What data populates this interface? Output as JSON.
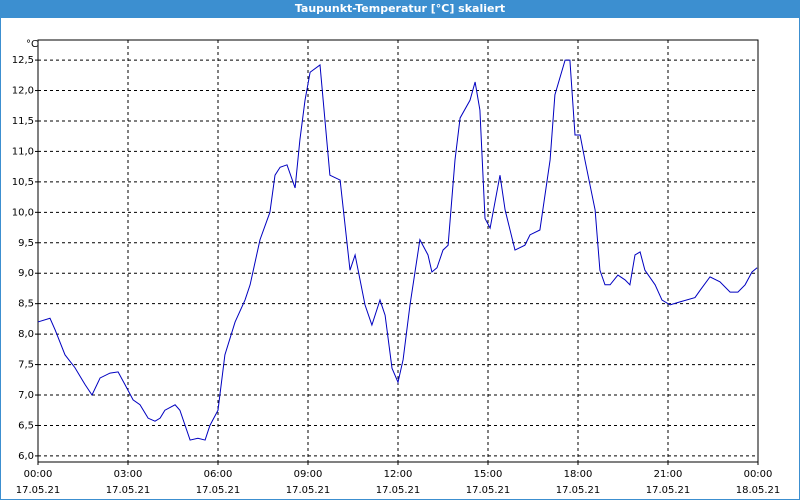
{
  "chart_data": {
    "type": "line",
    "title": "Taupunkt-Temperatur [°C] skaliert",
    "y_label": "°C",
    "x": [
      0,
      0.4,
      0.57,
      0.9,
      1.23,
      1.57,
      1.8,
      2.07,
      2.4,
      2.67,
      2.9,
      3.17,
      3.4,
      3.67,
      3.9,
      4.07,
      4.23,
      4.57,
      4.73,
      5.07,
      5.33,
      5.57,
      5.73,
      6.0,
      6.23,
      6.57,
      6.9,
      7.07,
      7.4,
      7.73,
      7.9,
      8.07,
      8.3,
      8.57,
      8.73,
      8.9,
      9.07,
      9.4,
      9.73,
      10.07,
      10.4,
      10.57,
      10.9,
      11.13,
      11.4,
      11.57,
      11.8,
      12.0,
      12.17,
      12.4,
      12.73,
      13.0,
      13.13,
      13.3,
      13.5,
      13.67,
      13.9,
      14.07,
      14.4,
      14.57,
      14.73,
      14.9,
      15.07,
      15.4,
      15.57,
      15.9,
      16.23,
      16.4,
      16.73,
      17.07,
      17.23,
      17.57,
      17.73,
      17.9,
      18.07,
      18.23,
      18.57,
      18.73,
      18.9,
      19.07,
      19.33,
      19.57,
      19.73,
      19.9,
      20.07,
      20.23,
      20.57,
      20.8,
      21.07,
      21.4,
      21.9,
      22.07,
      22.4,
      22.73,
      23.07,
      23.33,
      23.57,
      23.8,
      23.97
    ],
    "series": [
      {
        "name": "Taupunkt",
        "color": "#0000c0",
        "values": [
          8.2,
          8.26,
          8.07,
          7.66,
          7.45,
          7.17,
          7.0,
          7.28,
          7.36,
          7.38,
          7.17,
          6.92,
          6.84,
          6.62,
          6.57,
          6.62,
          6.75,
          6.84,
          6.75,
          6.26,
          6.29,
          6.26,
          6.5,
          6.75,
          7.66,
          8.2,
          8.56,
          8.81,
          9.55,
          10.0,
          10.61,
          10.74,
          10.78,
          10.4,
          11.19,
          11.84,
          12.3,
          12.42,
          10.61,
          10.53,
          9.05,
          9.3,
          8.48,
          8.15,
          8.56,
          8.31,
          7.44,
          7.21,
          7.58,
          8.48,
          9.55,
          9.3,
          9.02,
          9.09,
          9.38,
          9.46,
          10.86,
          11.55,
          11.84,
          12.14,
          11.68,
          9.9,
          9.74,
          10.61,
          10.04,
          9.38,
          9.46,
          9.63,
          9.71,
          10.86,
          11.93,
          12.5,
          12.5,
          11.27,
          11.27,
          10.86,
          10.04,
          9.05,
          8.81,
          8.81,
          8.97,
          8.89,
          8.81,
          9.3,
          9.35,
          9.05,
          8.81,
          8.56,
          8.48,
          8.53,
          8.6,
          8.72,
          8.94,
          8.86,
          8.69,
          8.69,
          8.81,
          9.02,
          9.09
        ]
      }
    ],
    "xlim": [
      0,
      24
    ],
    "xticks": [
      {
        "value": 0,
        "label": "00:00"
      },
      {
        "value": 3,
        "label": "03:00"
      },
      {
        "value": 6,
        "label": "06:00"
      },
      {
        "value": 9,
        "label": "09:00"
      },
      {
        "value": 12,
        "label": "12:00"
      },
      {
        "value": 15,
        "label": "15:00"
      },
      {
        "value": 18,
        "label": "18:00"
      },
      {
        "value": 21,
        "label": "21:00"
      },
      {
        "value": 24,
        "label": "00:00"
      }
    ],
    "xtick_dates": [
      "17.05.21",
      "17.05.21",
      "17.05.21",
      "17.05.21",
      "17.05.21",
      "17.05.21",
      "17.05.21",
      "17.05.21",
      "18.05.21"
    ],
    "ylim": [
      5.9,
      12.83
    ],
    "yticks": [
      {
        "value": 6.0,
        "label": "6,0"
      },
      {
        "value": 6.5,
        "label": "6,5"
      },
      {
        "value": 7.0,
        "label": "7,0"
      },
      {
        "value": 7.5,
        "label": "7,5"
      },
      {
        "value": 8.0,
        "label": "8,0"
      },
      {
        "value": 8.5,
        "label": "8,5"
      },
      {
        "value": 9.0,
        "label": "9,0"
      },
      {
        "value": 9.5,
        "label": "9,5"
      },
      {
        "value": 10.0,
        "label": "10,0"
      },
      {
        "value": 10.5,
        "label": "10,5"
      },
      {
        "value": 11.0,
        "label": "11,0"
      },
      {
        "value": 11.5,
        "label": "11,5"
      },
      {
        "value": 12.0,
        "label": "12,0"
      },
      {
        "value": 12.5,
        "label": "12,5"
      }
    ],
    "grid": true
  }
}
